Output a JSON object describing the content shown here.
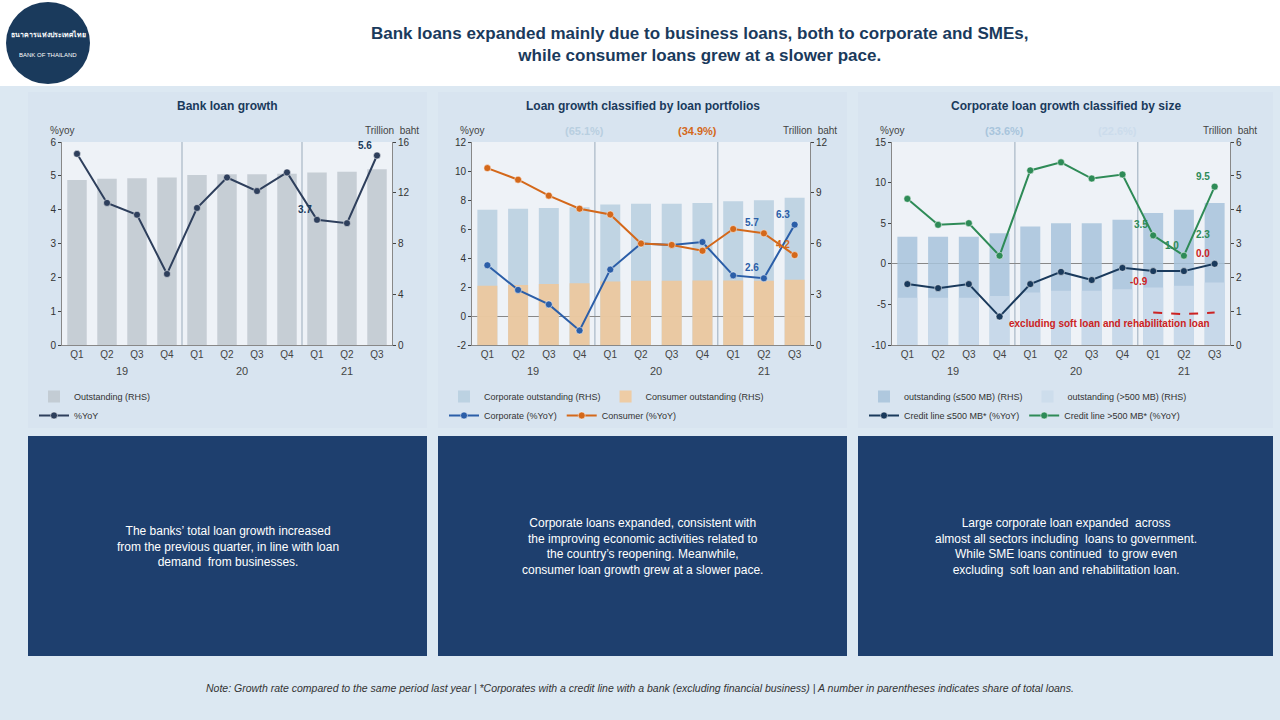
{
  "title": "Bank loans expanded mainly due to business loans, both to corporate and SMEs,\nwhile consumer loans grew at a slower pace.",
  "logo_text": [
    "ธนาคารแห่งประเทศไทย",
    "BANK OF THAILAND"
  ],
  "note": "Note: Growth rate compared to the same period last year | *Corporates with a credit line with a bank (excluding financial business) | A number in parentheses indicates share of total loans.",
  "chart_data": [
    {
      "type": "bar",
      "title": "Bank loan growth",
      "categories": [
        "Q1",
        "Q2",
        "Q3",
        "Q4",
        "Q1",
        "Q2",
        "Q3",
        "Q4",
        "Q1",
        "Q2",
        "Q3"
      ],
      "category_groups": [
        "19",
        "20",
        "21"
      ],
      "y_label": "%yoy",
      "y2_label": "Trillion  baht",
      "ylim": [
        0,
        6
      ],
      "yticks": [
        0,
        1,
        2,
        3,
        4,
        5,
        6
      ],
      "y2lim": [
        0,
        16
      ],
      "y2ticks": [
        0,
        4,
        8,
        12,
        16
      ],
      "grid": false,
      "series": [
        {
          "name": "Outstanding (RHS)",
          "type": "bar",
          "axis": "y2",
          "color": "#c0c8d0",
          "values": [
            13.0,
            13.1,
            13.15,
            13.2,
            13.4,
            13.45,
            13.45,
            13.5,
            13.6,
            13.65,
            13.85
          ]
        },
        {
          "name": "%YoY",
          "type": "line",
          "color": "#2e3f5c",
          "marker": "circle",
          "values": [
            5.65,
            4.2,
            3.85,
            2.1,
            4.05,
            4.95,
            4.55,
            5.1,
            3.7,
            3.6,
            5.6
          ]
        }
      ],
      "annotations": [
        {
          "text": "5.6",
          "x": 10,
          "y": 5.6,
          "color": "#1a3a5c"
        },
        {
          "text": "3.7",
          "x": 8,
          "y": 3.7,
          "color": "#1a3a5c"
        }
      ],
      "caption": "The banks’ total loan growth increased\nfrom the previous quarter, in line with loan\ndemand  from businesses."
    },
    {
      "type": "bar",
      "title": "Loan growth classified by loan portfolios",
      "categories": [
        "Q1",
        "Q2",
        "Q3",
        "Q4",
        "Q1",
        "Q2",
        "Q3",
        "Q4",
        "Q1",
        "Q2",
        "Q3"
      ],
      "category_groups": [
        "19",
        "20",
        "21"
      ],
      "y_label": "%yoy",
      "y2_label": "Trillion  baht",
      "ylim": [
        -2,
        12
      ],
      "yticks": [
        -2,
        0,
        2,
        4,
        6,
        8,
        10,
        12
      ],
      "y2lim": [
        0,
        12
      ],
      "y2ticks": [
        0,
        3,
        6,
        9,
        12
      ],
      "grid": false,
      "series": [
        {
          "name": "Corporate outstanding (RHS)",
          "type": "bar",
          "axis": "y2",
          "color": "#b8cfe0",
          "values": [
            8.0,
            8.05,
            8.1,
            8.15,
            8.3,
            8.35,
            8.35,
            8.4,
            8.5,
            8.55,
            8.7
          ]
        },
        {
          "name": "Consumer outstanding (RHS)",
          "type": "bar",
          "axis": "y2",
          "color": "#f2c898",
          "values": [
            3.5,
            3.55,
            3.6,
            3.65,
            3.75,
            3.8,
            3.8,
            3.82,
            3.82,
            3.8,
            3.85
          ]
        },
        {
          "name": "Corporate (%YoY)",
          "type": "line",
          "color": "#2b5ea8",
          "marker": "circle",
          "values": [
            3.5,
            1.8,
            0.8,
            -1.0,
            3.2,
            5.0,
            4.9,
            5.1,
            2.8,
            2.6,
            6.3
          ]
        },
        {
          "name": "Consumer (%YoY)",
          "type": "line",
          "color": "#d4681a",
          "marker": "circle",
          "values": [
            10.2,
            9.4,
            8.3,
            7.4,
            7.0,
            5.0,
            4.9,
            4.5,
            6.0,
            5.7,
            4.2
          ]
        }
      ],
      "annotations": [
        {
          "text": "6.3",
          "x": 10,
          "y": 6.3,
          "color": "#2b5ea8"
        },
        {
          "text": "5.7",
          "x": 9,
          "y": 5.7,
          "color": "#2b5ea8"
        },
        {
          "text": "4.2",
          "x": 10,
          "y": 4.2,
          "color": "#d4681a"
        },
        {
          "text": "2.6",
          "x": 9,
          "y": 2.6,
          "color": "#2b5ea8"
        },
        {
          "text": "(65.1%)",
          "color": "#b8cfe0"
        },
        {
          "text": "(34.9%)",
          "color": "#d4681a"
        }
      ],
      "caption": "Corporate loans expanded, consistent with\nthe improving economic activities related to\nthe country’s reopening. Meanwhile,\nconsumer loan growth grew at a slower pace."
    },
    {
      "type": "bar",
      "title": "Corporate loan growth classified by size",
      "categories": [
        "Q1",
        "Q2",
        "Q3",
        "Q4",
        "Q1",
        "Q2",
        "Q3",
        "Q4",
        "Q1",
        "Q2",
        "Q3"
      ],
      "category_groups": [
        "19",
        "20",
        "21"
      ],
      "y_label": "%yoy",
      "y2_label": "Trillion  baht",
      "ylim": [
        -10,
        15
      ],
      "yticks": [
        -10,
        -5,
        0,
        5,
        10,
        15
      ],
      "y2lim": [
        0,
        6
      ],
      "y2ticks": [
        0,
        1,
        2,
        3,
        4,
        5,
        6
      ],
      "grid": false,
      "series": [
        {
          "name": "outstanding (≤500 MB) (RHS)",
          "type": "bar",
          "axis": "y2",
          "color": "#a8c4dc",
          "values": [
            3.2,
            3.2,
            3.2,
            3.3,
            3.5,
            3.6,
            3.6,
            3.7,
            3.9,
            4.0,
            4.2
          ]
        },
        {
          "name": "outstanding (>500 MB) (RHS)",
          "type": "bar",
          "axis": "y2",
          "color": "#ccdcec",
          "values": [
            1.4,
            1.4,
            1.4,
            1.45,
            1.55,
            1.6,
            1.6,
            1.65,
            1.7,
            1.75,
            1.85
          ]
        },
        {
          "name": "Credit line ≤500 MB* (%YoY)",
          "type": "line",
          "color": "#1a3a5c",
          "marker": "circle",
          "values": [
            -2.5,
            -3.0,
            -2.5,
            -6.5,
            -2.5,
            -1.0,
            -2.0,
            -0.5,
            -0.9,
            -0.9,
            0.0
          ]
        },
        {
          "name": "Credit line >500 MB* (%YoY)",
          "type": "line",
          "color": "#2e8b57",
          "marker": "circle",
          "values": [
            8.0,
            4.8,
            5.0,
            1.0,
            11.5,
            12.5,
            10.5,
            11.0,
            3.5,
            1.0,
            9.5
          ]
        },
        {
          "type": "line",
          "color": "#cc2222",
          "line_style": "dashed",
          "values": [
            null,
            null,
            null,
            null,
            null,
            null,
            null,
            null,
            -6.0,
            -6.2,
            -6.0
          ]
        }
      ],
      "annotations": [
        {
          "text": "9.5",
          "x": 10,
          "y": 9.5,
          "color": "#2e8b57"
        },
        {
          "text": "3.5",
          "x": 8,
          "y": 3.5,
          "color": "#2e8b57"
        },
        {
          "text": "1.0",
          "x": 9,
          "y": 1.0,
          "color": "#2e8b57"
        },
        {
          "text": "2.3",
          "x": 10,
          "y": 2.3,
          "color": "#2e8b57"
        },
        {
          "text": "-0.9",
          "x": 8,
          "y": -0.9,
          "color": "#cc2222"
        },
        {
          "text": "0.0",
          "x": 10,
          "y": 0,
          "color": "#cc2222"
        },
        {
          "text": "excluding soft loan and rehabilitation loan",
          "x": 10,
          "y": -6.0,
          "color": "#cc2222"
        },
        {
          "text": "(33.6%)",
          "color": "#a8c4dc"
        },
        {
          "text": "(22.6%)",
          "color": "#ccdcec"
        }
      ],
      "caption": "Large corporate loan expanded  across\nalmost all sectors including  loans to government.\nWhile SME loans continued  to grow even\nexcluding  soft loan and rehabilitation loan."
    }
  ]
}
